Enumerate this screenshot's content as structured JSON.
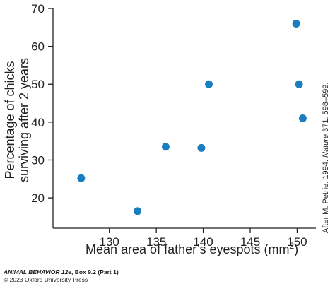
{
  "chart_data": {
    "type": "scatter",
    "xlabel": "Mean area of father’s eyespots (mm",
    "xlabel_sup": "2",
    "xlabel_end": ")",
    "ylabel_line1": "Percentage of chicks",
    "ylabel_line2": "surviving after 2 years",
    "xlim": [
      124,
      152
    ],
    "ylim": [
      12,
      70
    ],
    "xticks": [
      130,
      135,
      140,
      145,
      150
    ],
    "yticks": [
      20,
      30,
      40,
      50,
      60,
      70
    ],
    "marker_color": "#1a7dc0",
    "axis_color": "#231f20",
    "grid": false,
    "points": [
      {
        "x": 127.0,
        "y": 25.2
      },
      {
        "x": 133.0,
        "y": 16.5
      },
      {
        "x": 136.0,
        "y": 33.5
      },
      {
        "x": 139.8,
        "y": 33.2
      },
      {
        "x": 140.6,
        "y": 50.0
      },
      {
        "x": 149.9,
        "y": 66.0
      },
      {
        "x": 150.2,
        "y": 50.0
      },
      {
        "x": 150.6,
        "y": 41.0
      }
    ]
  },
  "source_note_prefix": "After M. Petrie. 1994. ",
  "source_note_journal": "Nature",
  "source_note_suffix": " 371: 598–599.",
  "credit_title": "ANIMAL BEHAVIOR 12e",
  "credit_title_rest": ", Box 9.2 (Part 1)",
  "credit_copyright": "© 2023 Oxford University Press"
}
